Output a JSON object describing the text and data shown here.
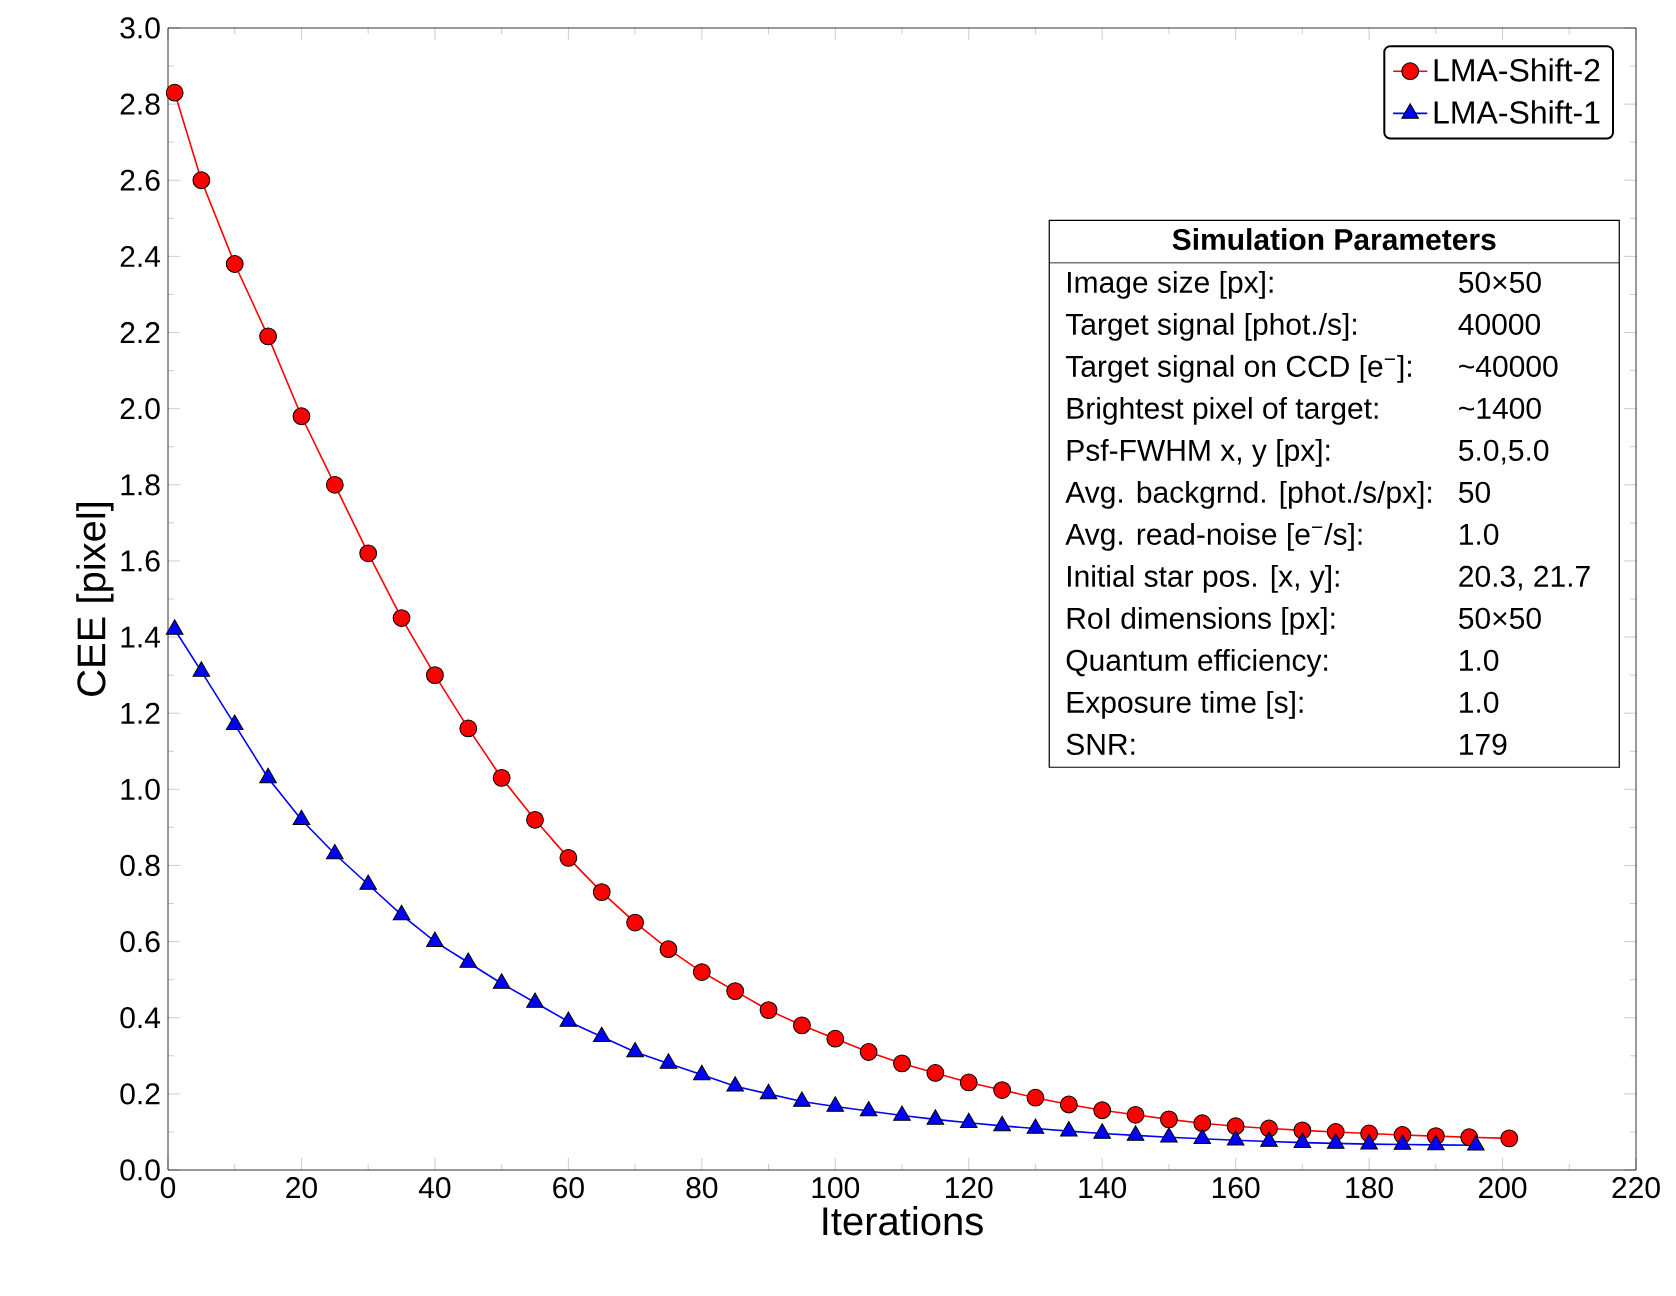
{
  "chart_data": {
    "type": "line",
    "xlabel": "Iterations",
    "ylabel": "CEE [pixel]",
    "xlim": [
      0,
      220
    ],
    "xticks": [
      0,
      20,
      40,
      60,
      80,
      100,
      120,
      140,
      160,
      180,
      200,
      220
    ],
    "ylim": [
      0,
      3.0
    ],
    "yticks": [
      {
        "value": 0,
        "label": "0.0"
      },
      {
        "value": 0.2,
        "label": "0.2"
      },
      {
        "value": 0.4,
        "label": "0.4"
      },
      {
        "value": 0.6,
        "label": "0.6"
      },
      {
        "value": 0.8,
        "label": "0.8"
      },
      {
        "value": 1.0,
        "label": "1.0"
      },
      {
        "value": 1.2,
        "label": "1.2"
      },
      {
        "value": 1.4,
        "label": "1.4"
      },
      {
        "value": 1.6,
        "label": "1.6"
      },
      {
        "value": 1.8,
        "label": "1.8"
      },
      {
        "value": 2.0,
        "label": "2.0"
      },
      {
        "value": 2.2,
        "label": "2.2"
      },
      {
        "value": 2.4,
        "label": "2.4"
      },
      {
        "value": 2.6,
        "label": "2.6"
      },
      {
        "value": 2.8,
        "label": "2.8"
      },
      {
        "value": 3.0,
        "label": "3.0"
      }
    ],
    "legend": "top right",
    "line_style": "solid",
    "series": [
      {
        "name": "LMA-Shift-2",
        "color": "#ff0000",
        "marker": "circle",
        "x": [
          1,
          5,
          10,
          15,
          20,
          25,
          30,
          35,
          40,
          45,
          50,
          55,
          60,
          65,
          70,
          75,
          80,
          85,
          90,
          95,
          100,
          105,
          110,
          115,
          120,
          125,
          130,
          135,
          140,
          145,
          150,
          155,
          160,
          165,
          170,
          175,
          180,
          185,
          190,
          195,
          201
        ],
        "values": [
          2.83,
          2.6,
          2.38,
          2.19,
          1.98,
          1.8,
          1.62,
          1.45,
          1.3,
          1.16,
          1.03,
          0.92,
          0.82,
          0.73,
          0.65,
          0.58,
          0.52,
          0.47,
          0.42,
          0.38,
          0.345,
          0.31,
          0.28,
          0.255,
          0.23,
          0.21,
          0.19,
          0.172,
          0.157,
          0.145,
          0.133,
          0.123,
          0.115,
          0.109,
          0.104,
          0.1,
          0.096,
          0.092,
          0.089,
          0.086,
          0.083
        ]
      },
      {
        "name": "LMA-Shift-1",
        "color": "#0000ff",
        "marker": "triangle",
        "x": [
          1,
          5,
          10,
          15,
          20,
          25,
          30,
          35,
          40,
          45,
          50,
          55,
          60,
          65,
          70,
          75,
          80,
          85,
          90,
          95,
          100,
          105,
          110,
          115,
          120,
          125,
          130,
          135,
          140,
          145,
          150,
          155,
          160,
          165,
          170,
          175,
          180,
          185,
          190,
          196
        ],
        "values": [
          1.42,
          1.31,
          1.17,
          1.03,
          0.92,
          0.83,
          0.75,
          0.67,
          0.6,
          0.545,
          0.49,
          0.44,
          0.39,
          0.35,
          0.31,
          0.28,
          0.25,
          0.22,
          0.2,
          0.18,
          0.167,
          0.155,
          0.143,
          0.133,
          0.124,
          0.116,
          0.109,
          0.102,
          0.096,
          0.091,
          0.086,
          0.082,
          0.078,
          0.075,
          0.072,
          0.07,
          0.068,
          0.067,
          0.066,
          0.065
        ]
      }
    ],
    "annotations": [
      "Simulation Parameters",
      "Image size [px]:",
      "50×50",
      "Target signal [phot./s]:",
      "40000",
      "Target signal on CCD [e$^{−}$]:",
      "~40000",
      "Brightest pixel of target:",
      "~1400",
      "Psf-FWHM x, y [px]:",
      "5.0,5.0",
      "Avg. backgrnd. [phot./s/px]:",
      "50",
      "Avg. read-noise [e$^{−}$/s]:",
      "1.0",
      "Initial star pos. [x, y]:",
      "20.3, 21.7",
      "RoI dimensions [px]:",
      "50×50",
      "Quantum efficiency:",
      "1.0",
      "Exposure time [s]:",
      "1.0",
      "SNR:",
      "179"
    ]
  }
}
